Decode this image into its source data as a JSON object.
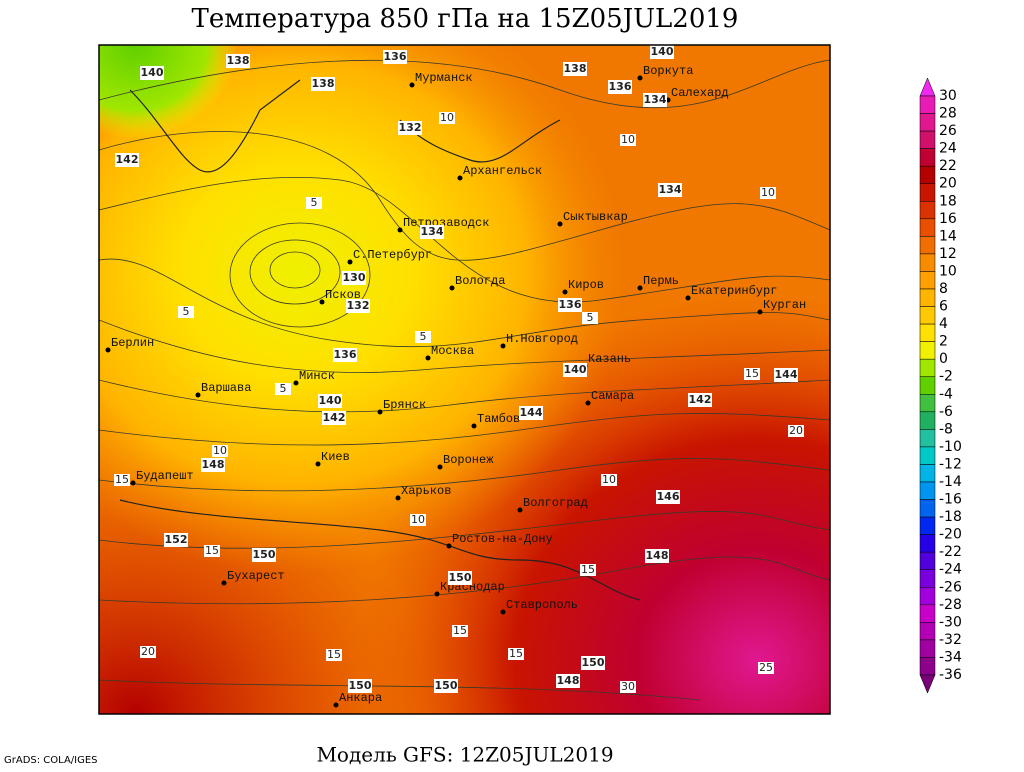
{
  "title": "Температура 850 гПа на 15Z05JUL2019",
  "subtitle": "Модель GFS: 12Z05JUL2019",
  "credit": "GrADS: COLA/IGES",
  "colorbar": {
    "ticks": [
      30,
      28,
      26,
      24,
      22,
      20,
      18,
      16,
      14,
      12,
      10,
      8,
      6,
      4,
      2,
      0,
      -2,
      -4,
      -6,
      -8,
      -10,
      -12,
      -14,
      -16,
      -18,
      -20,
      -22,
      -24,
      -26,
      -28,
      -30,
      -32,
      -34,
      -36
    ],
    "colors": [
      "#f028f0",
      "#e81cb4",
      "#e01890",
      "#d0106a",
      "#c00030",
      "#b40000",
      "#c81400",
      "#dc3200",
      "#e85000",
      "#f06e00",
      "#f88c00",
      "#ffa000",
      "#ffb400",
      "#ffc800",
      "#ffe000",
      "#f0f000",
      "#a0e600",
      "#60d000",
      "#40c040",
      "#20b060",
      "#20c0a0",
      "#00c8c8",
      "#00b4e6",
      "#0096f0",
      "#0064f0",
      "#0028f0",
      "#2800e6",
      "#5000dc",
      "#7800dc",
      "#a000dc",
      "#c800c8",
      "#b400b4",
      "#a000a0",
      "#8c008c",
      "#780078"
    ]
  },
  "map": {
    "cities": [
      "Мурманск",
      "Воркута",
      "Салехард",
      "Архангельск",
      "Сыктывкар",
      "Петрозаводск",
      "С.Петербург",
      "Вологда",
      "Киров",
      "Пермь",
      "Екатеринбург",
      "Курган",
      "Псков",
      "Берлин",
      "Москва",
      "Н.Новгород",
      "Казань",
      "Минск",
      "Варшава",
      "Брянск",
      "Самара",
      "Тамбов",
      "Киев",
      "Воронеж",
      "Будапешт",
      "Харьков",
      "Волгоград",
      "Ростов-на-Дону",
      "Бухарест",
      "Краснодар",
      "Ставрополь",
      "Анкара"
    ],
    "height_labels": [
      136,
      138,
      140,
      138,
      138,
      140,
      136,
      134,
      132,
      142,
      134,
      134,
      130,
      132,
      136,
      136,
      140,
      140,
      142,
      144,
      142,
      144,
      148,
      146,
      152,
      150,
      148,
      150,
      150,
      148,
      150,
      150
    ],
    "temp_labels": [
      10,
      10,
      10,
      5,
      5,
      5,
      5,
      5,
      15,
      20,
      10,
      15,
      10,
      10,
      15,
      15,
      15,
      15,
      20,
      15,
      25,
      30
    ]
  }
}
